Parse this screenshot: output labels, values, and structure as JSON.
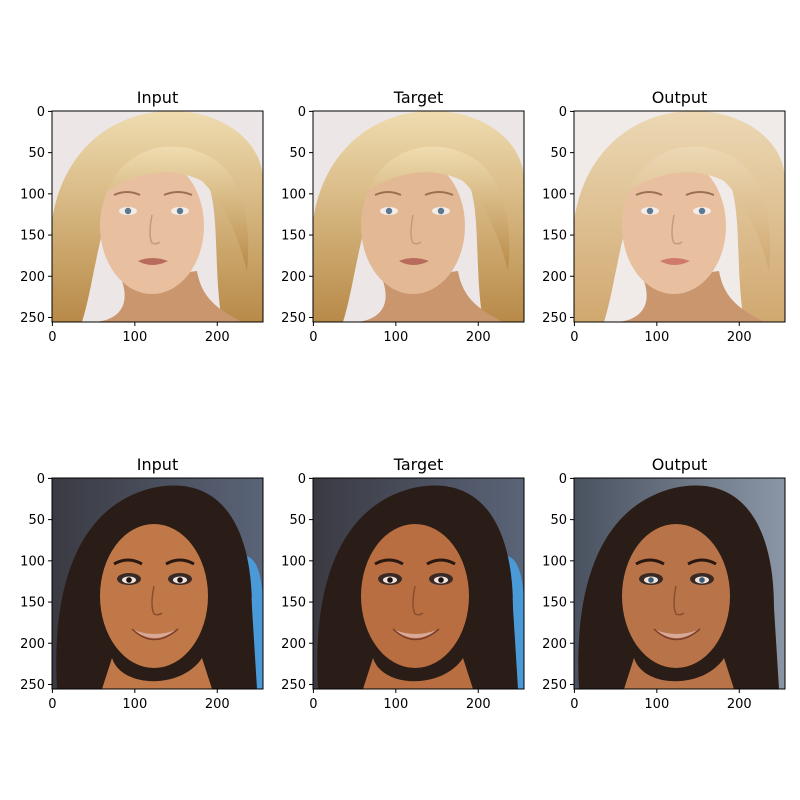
{
  "panels": [
    {
      "title": "Input",
      "subject": "blonde",
      "variant": "input"
    },
    {
      "title": "Target",
      "subject": "blonde",
      "variant": "target"
    },
    {
      "title": "Output",
      "subject": "blonde",
      "variant": "output"
    },
    {
      "title": "Input",
      "subject": "brunette",
      "variant": "input"
    },
    {
      "title": "Target",
      "subject": "brunette",
      "variant": "target"
    },
    {
      "title": "Output",
      "subject": "brunette",
      "variant": "output"
    }
  ],
  "axis": {
    "x_ticks": [
      0,
      100,
      200
    ],
    "y_ticks": [
      0,
      50,
      100,
      150,
      200,
      250
    ],
    "range": [
      0,
      256
    ]
  },
  "colors": {
    "blonde_hair": "#d8b878",
    "blonde_hair_dark": "#b88a48",
    "blonde_skin": "#e8c0a0",
    "blonde_bg": "#ece6e6",
    "brunette_hair": "#2a1c16",
    "brunette_skin": "#c07848",
    "brunette_bg_input": "#3a3a42",
    "brunette_accent": "#4a9ad8",
    "output_bg": "#8a96a6"
  }
}
